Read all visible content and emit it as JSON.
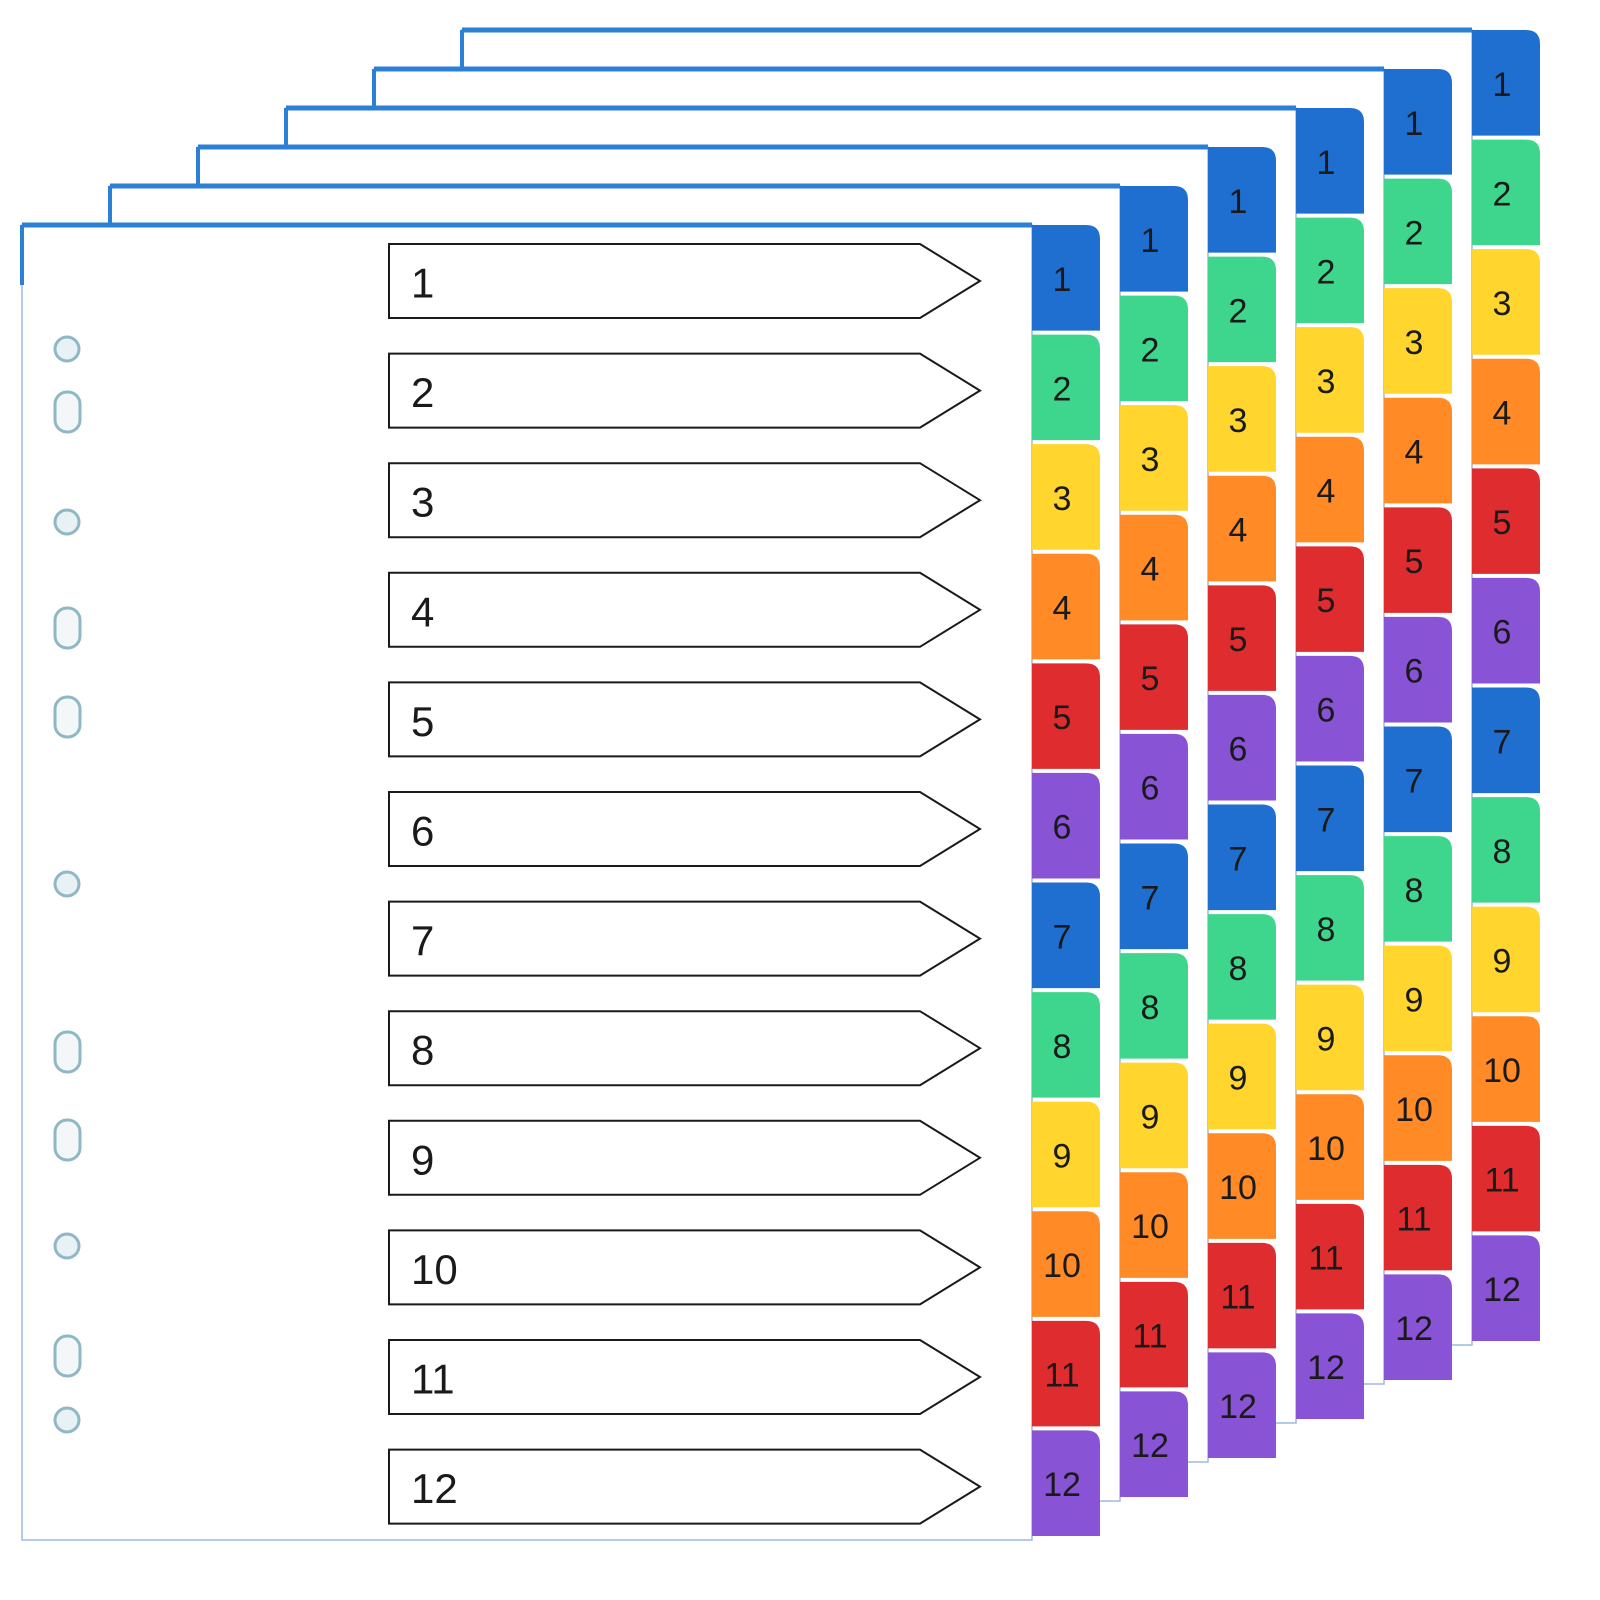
{
  "index_page": {
    "entries": [
      "1",
      "2",
      "3",
      "4",
      "5",
      "6",
      "7",
      "8",
      "9",
      "10",
      "11",
      "12"
    ]
  },
  "sets": [
    {
      "tabs": [
        "1",
        "2",
        "3",
        "4",
        "5",
        "6",
        "7",
        "8",
        "9",
        "10",
        "11",
        "12"
      ]
    },
    {
      "tabs": [
        "1",
        "2",
        "3",
        "4",
        "5",
        "6",
        "7",
        "8",
        "9",
        "10",
        "11",
        "12"
      ]
    },
    {
      "tabs": [
        "1",
        "2",
        "3",
        "4",
        "5",
        "6",
        "7",
        "8",
        "9",
        "10",
        "11",
        "12"
      ]
    },
    {
      "tabs": [
        "1",
        "2",
        "3",
        "4",
        "5",
        "6",
        "7",
        "8",
        "9",
        "10",
        "11",
        "12"
      ]
    },
    {
      "tabs": [
        "1",
        "2",
        "3",
        "4",
        "5",
        "6",
        "7",
        "8",
        "9",
        "10",
        "11",
        "12"
      ]
    },
    {
      "tabs": [
        "1",
        "2",
        "3",
        "4",
        "5",
        "6",
        "7",
        "8",
        "9",
        "10",
        "11",
        "12"
      ]
    }
  ]
}
